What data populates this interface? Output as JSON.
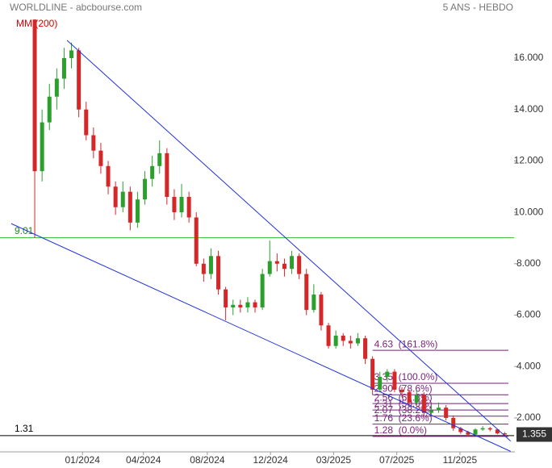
{
  "chart_data": {
    "type": "candlestick",
    "title": "WORLDLINE - abcbourse.com",
    "subtitle": "5 ANS - HEBDO",
    "indicator": "MM (200)",
    "up_color": "#2ca02c",
    "down_color": "#d62728",
    "open": [
      17.5,
      11.6,
      13.5,
      14.5,
      15.2,
      16.0,
      16.3,
      14.0,
      13.0,
      12.4,
      11.8,
      11.0,
      10.2,
      10.8,
      9.6,
      10.5,
      11.3,
      11.8,
      12.3,
      10.6,
      10.0,
      10.6,
      9.8,
      8.0,
      7.6,
      8.3,
      7.0,
      6.3,
      6.4,
      6.3,
      6.5,
      6.3,
      7.6,
      8.1,
      8.0,
      7.8,
      8.3,
      7.6,
      6.2,
      6.8,
      5.6,
      4.8,
      5.2,
      5.0,
      4.9,
      5.1,
      4.3,
      3.1,
      3.6,
      3.8,
      3.1,
      3.0,
      2.6,
      2.9,
      2.2,
      2.3,
      2.4,
      2.0,
      1.6,
      1.45,
      1.35,
      1.55,
      1.6,
      1.55,
      1.4
    ],
    "high": [
      17.5,
      14.0,
      15.0,
      15.6,
      16.4,
      16.6,
      16.4,
      14.3,
      13.3,
      12.7,
      12.0,
      11.2,
      11.2,
      11.0,
      10.8,
      11.6,
      12.2,
      12.8,
      12.5,
      10.9,
      11.1,
      10.8,
      10.0,
      8.2,
      8.6,
      8.5,
      7.1,
      6.6,
      6.6,
      6.7,
      6.6,
      7.8,
      8.9,
      8.4,
      8.2,
      8.5,
      8.4,
      7.8,
      7.2,
      6.9,
      5.7,
      5.4,
      5.3,
      5.2,
      5.3,
      5.2,
      4.4,
      3.8,
      3.9,
      3.9,
      3.2,
      3.1,
      3.1,
      3.0,
      2.5,
      2.6,
      2.5,
      2.1,
      1.65,
      1.5,
      1.6,
      1.68,
      1.65,
      1.58,
      1.45
    ],
    "low": [
      9.0,
      11.2,
      13.2,
      14.0,
      14.8,
      15.6,
      13.7,
      12.8,
      12.1,
      11.5,
      10.7,
      9.9,
      10.0,
      9.3,
      9.4,
      10.3,
      11.0,
      11.5,
      10.3,
      9.7,
      9.8,
      9.6,
      7.9,
      7.3,
      7.4,
      6.8,
      5.8,
      6.0,
      6.1,
      6.1,
      6.1,
      6.2,
      7.5,
      7.7,
      7.5,
      7.6,
      7.4,
      6.0,
      6.1,
      5.4,
      4.7,
      4.7,
      4.8,
      4.7,
      4.8,
      4.1,
      2.9,
      3.0,
      3.4,
      3.0,
      2.8,
      2.5,
      2.5,
      2.1,
      2.1,
      2.2,
      1.9,
      1.5,
      1.38,
      1.28,
      1.32,
      1.5,
      1.48,
      1.36,
      1.32
    ],
    "close": [
      11.6,
      13.5,
      14.5,
      15.2,
      16.0,
      16.3,
      14.0,
      13.0,
      12.4,
      11.8,
      11.0,
      10.2,
      10.8,
      9.6,
      10.5,
      11.3,
      11.8,
      12.3,
      10.6,
      10.0,
      10.6,
      9.8,
      8.0,
      7.6,
      8.3,
      7.0,
      6.3,
      6.4,
      6.3,
      6.5,
      6.3,
      7.6,
      8.1,
      8.0,
      7.8,
      8.3,
      7.6,
      6.2,
      6.8,
      5.6,
      4.8,
      5.2,
      5.0,
      4.9,
      5.1,
      4.3,
      3.1,
      3.6,
      3.8,
      3.1,
      3.0,
      2.6,
      2.9,
      2.2,
      2.3,
      2.4,
      2.0,
      1.6,
      1.45,
      1.35,
      1.55,
      1.6,
      1.55,
      1.4,
      1.355
    ],
    "xlim": [
      -4.73,
      65.27
    ],
    "xticks": [
      {
        "value": 6.5,
        "label": "01/2024"
      },
      {
        "value": 14.8,
        "label": "04/2024"
      },
      {
        "value": 23.5,
        "label": "08/2024"
      },
      {
        "value": 32.1,
        "label": "12/2024"
      },
      {
        "value": 40.7,
        "label": "03/2025"
      },
      {
        "value": 49.3,
        "label": "07/2025"
      },
      {
        "value": 57.9,
        "label": "11/2025"
      }
    ],
    "ylim": [
      0.68,
      18.26
    ],
    "yticks": [
      {
        "value": 2,
        "label": "2.000"
      },
      {
        "value": 4,
        "label": "4.000"
      },
      {
        "value": 6,
        "label": "6.000"
      },
      {
        "value": 8,
        "label": "8.000"
      },
      {
        "value": 10,
        "label": "10.000"
      },
      {
        "value": 12,
        "label": "12.000"
      },
      {
        "value": 14,
        "label": "14.000"
      },
      {
        "value": 16,
        "label": "16.000"
      }
    ],
    "hlines": [
      {
        "value": 9.01,
        "label": "9.01",
        "color": "#33bb33"
      },
      {
        "value": 1.31,
        "label": "1.31",
        "color": "#000000"
      }
    ],
    "trendlines": [
      {
        "color": "#2233dd",
        "x": [
          4.4,
          64.8
        ],
        "y": [
          16.69,
          1.1
        ]
      },
      {
        "color": "#2233dd",
        "x": [
          -3.2,
          64.8
        ],
        "y": [
          9.56,
          0.7
        ]
      }
    ],
    "fibonacci": {
      "color": "#7a1f7a",
      "x": [
        46,
        64.5
      ],
      "levels": [
        {
          "value": 4.63,
          "label": "4.63  (161.8%)"
        },
        {
          "value": 3.35,
          "label": "3.35  (100.0%)"
        },
        {
          "value": 2.9,
          "label": "2.90  (78.6%)"
        },
        {
          "value": 2.56,
          "label": "2.56  (61.8%)"
        },
        {
          "value": 2.31,
          "label": "2.31  (50.0%)"
        },
        {
          "value": 2.07,
          "label": "2.07  (38.2%)"
        },
        {
          "value": 1.76,
          "label": "1.76  (23.6%)"
        },
        {
          "value": 1.28,
          "label": "1.28  (0.0%)"
        }
      ]
    }
  }
}
